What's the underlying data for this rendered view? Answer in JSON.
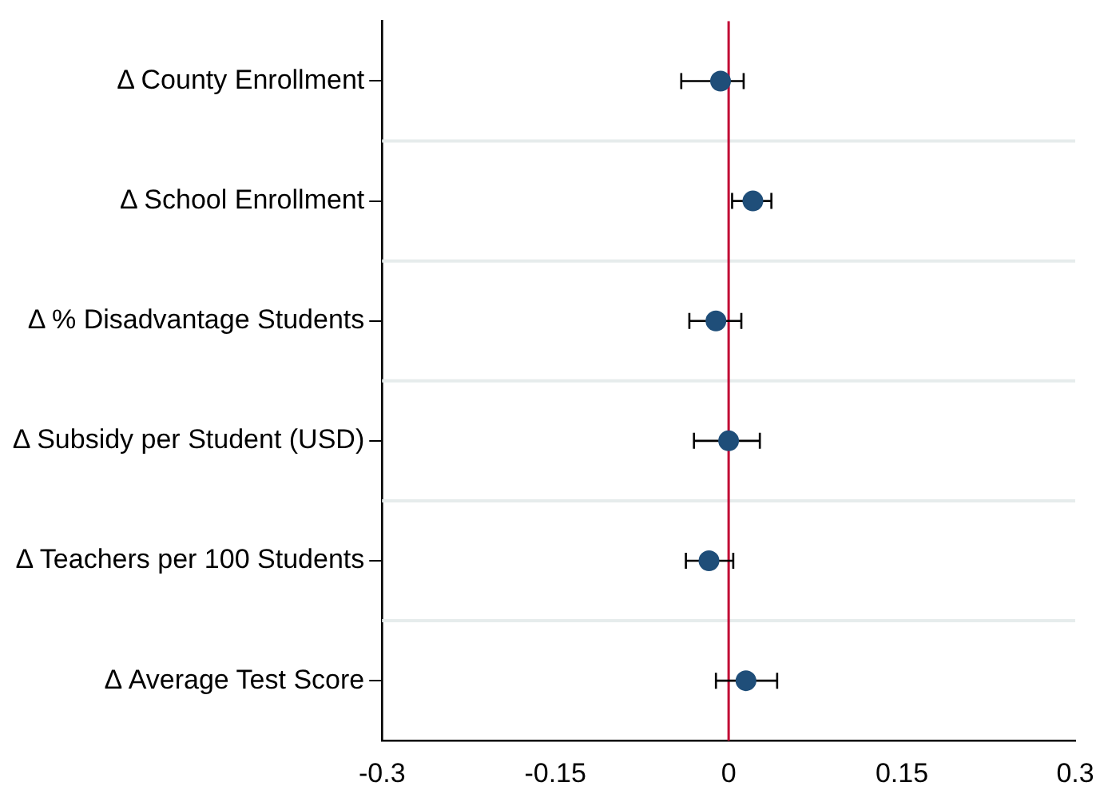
{
  "chart_data": {
    "type": "scatter",
    "orientation": "horizontal",
    "categories": [
      "Δ County Enrollment",
      "Δ School Enrollment",
      "Δ % Disadvantage Students",
      "Δ Subsidy per Student (USD)",
      "Δ Teachers per 100 Students",
      "Δ Average Test Score"
    ],
    "values": [
      -0.007,
      0.021,
      -0.011,
      0,
      -0.017,
      0.015
    ],
    "errors": [
      [
        -0.041,
        0.013
      ],
      [
        0.003,
        0.037
      ],
      [
        -0.034,
        0.011
      ],
      [
        -0.03,
        0.027
      ],
      [
        -0.037,
        0.004
      ],
      [
        -0.011,
        0.042
      ]
    ],
    "color": "#1f4e79",
    "marker": "circle",
    "xlim": [
      -0.3,
      0.3
    ],
    "xticks": [
      -0.3,
      -0.15,
      0,
      0.15,
      0.3
    ],
    "ref_lines": [
      {
        "axis": "x",
        "value": 0,
        "color": "#c10534"
      }
    ],
    "grid": "y"
  }
}
